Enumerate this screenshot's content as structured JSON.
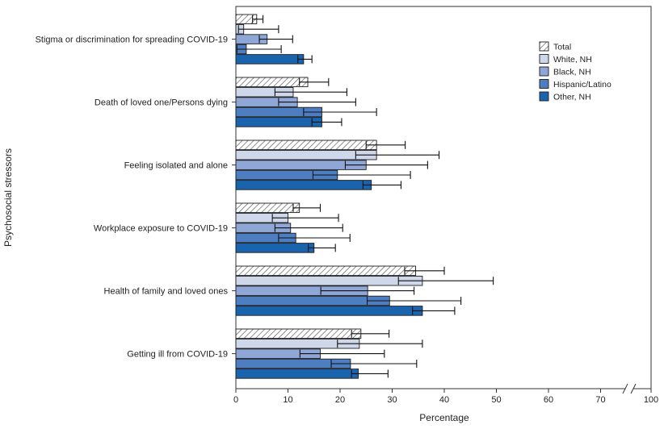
{
  "chart_data": {
    "type": "bar",
    "orientation": "horizontal",
    "title": "",
    "xlabel": "Percentage",
    "ylabel": "Psychosocial stressors",
    "xlim": [
      0,
      100
    ],
    "axis_break_between": [
      70,
      100
    ],
    "x_ticks": [
      "0",
      "10",
      "20",
      "30",
      "40",
      "50",
      "60",
      "70",
      "100"
    ],
    "legend_position": "top-right",
    "categories": [
      "Stigma or discrimination for spreading COVID-19",
      "Death of loved one/Persons dying",
      "Feeling isolated and alone",
      "Workplace exposure to COVID-19",
      "Health of family and loved ones",
      "Getting ill from COVID-19"
    ],
    "series": [
      {
        "name": "Total",
        "color": "#ffffff",
        "pattern": "hatch",
        "values": [
          4.0,
          13.8,
          27.0,
          12.2,
          34.5,
          24.0
        ],
        "ci_low": [
          3.2,
          12.2,
          25.0,
          11.0,
          32.4,
          22.2
        ],
        "ci_high": [
          5.2,
          17.8,
          32.5,
          16.2,
          40.0,
          29.4
        ]
      },
      {
        "name": "White, NH",
        "color": "#cfd7ea",
        "values": [
          1.5,
          11.0,
          27.0,
          10.0,
          35.8,
          23.7
        ],
        "ci_low": [
          0.5,
          7.5,
          23.0,
          7.0,
          31.2,
          19.5
        ],
        "ci_high": [
          8.2,
          21.3,
          39.0,
          19.7,
          49.4,
          35.8
        ]
      },
      {
        "name": "Black, NH",
        "color": "#8fa7d6",
        "values": [
          6.0,
          11.8,
          25.0,
          10.5,
          25.3,
          16.2
        ],
        "ci_low": [
          4.5,
          8.2,
          21.0,
          7.5,
          16.3,
          12.3
        ],
        "ci_high": [
          10.9,
          23.0,
          36.8,
          20.5,
          34.2,
          28.5
        ]
      },
      {
        "name": "Hispanic/Latino",
        "color": "#4d7ec2",
        "values": [
          2.0,
          16.5,
          19.5,
          11.5,
          29.5,
          22.0
        ],
        "ci_low": [
          0.2,
          13.0,
          14.8,
          8.2,
          25.2,
          18.3
        ],
        "ci_high": [
          8.7,
          27.0,
          33.5,
          21.9,
          43.2,
          34.7
        ]
      },
      {
        "name": "Other, NH",
        "color": "#1a63ad",
        "values": [
          13.0,
          16.5,
          26.0,
          15.0,
          35.8,
          23.5
        ],
        "ci_low": [
          11.9,
          14.6,
          24.4,
          13.9,
          33.9,
          22.2
        ],
        "ci_high": [
          14.6,
          20.3,
          31.7,
          19.1,
          42.0,
          29.2
        ]
      }
    ]
  }
}
